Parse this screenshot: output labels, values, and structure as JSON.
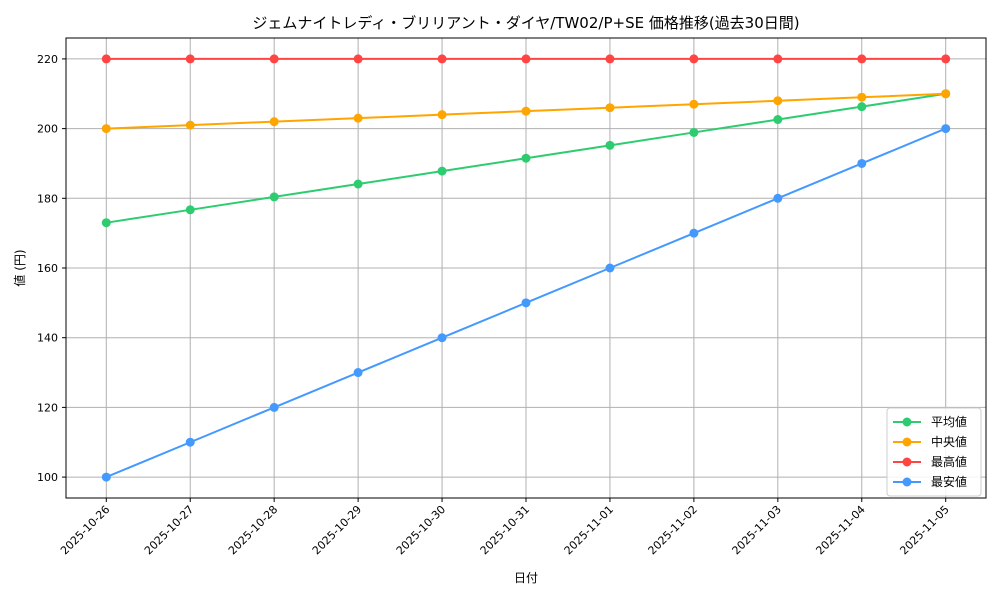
{
  "chart_data": {
    "type": "line",
    "title": "ジェムナイトレディ・ブリリアント・ダイヤ/TW02/P+SE 価格推移(過去30日間)",
    "xlabel": "日付",
    "ylabel": "値 (円)",
    "x": [
      "2025-10-26",
      "2025-10-27",
      "2025-10-28",
      "2025-10-29",
      "2025-10-30",
      "2025-10-31",
      "2025-11-01",
      "2025-11-02",
      "2025-11-03",
      "2025-11-04",
      "2025-11-05"
    ],
    "ylim": [
      94,
      226
    ],
    "yticks": [
      100,
      120,
      140,
      160,
      180,
      200,
      220
    ],
    "grid": true,
    "legend_position": "bottom-right",
    "series": [
      {
        "name": "平均値",
        "color": "#2ecc71",
        "values": [
          173,
          176.7,
          180.4,
          184.1,
          187.8,
          191.5,
          195.2,
          198.9,
          202.6,
          206.3,
          210
        ]
      },
      {
        "name": "中央値",
        "color": "#ffa500",
        "values": [
          200,
          201,
          202,
          203,
          204,
          205,
          206,
          207,
          208,
          209,
          210
        ]
      },
      {
        "name": "最高値",
        "color": "#ff4444",
        "values": [
          220,
          220,
          220,
          220,
          220,
          220,
          220,
          220,
          220,
          220,
          220
        ]
      },
      {
        "name": "最安値",
        "color": "#4499ff",
        "values": [
          100,
          110,
          120,
          130,
          140,
          150,
          160,
          170,
          180,
          190,
          200
        ]
      }
    ]
  }
}
